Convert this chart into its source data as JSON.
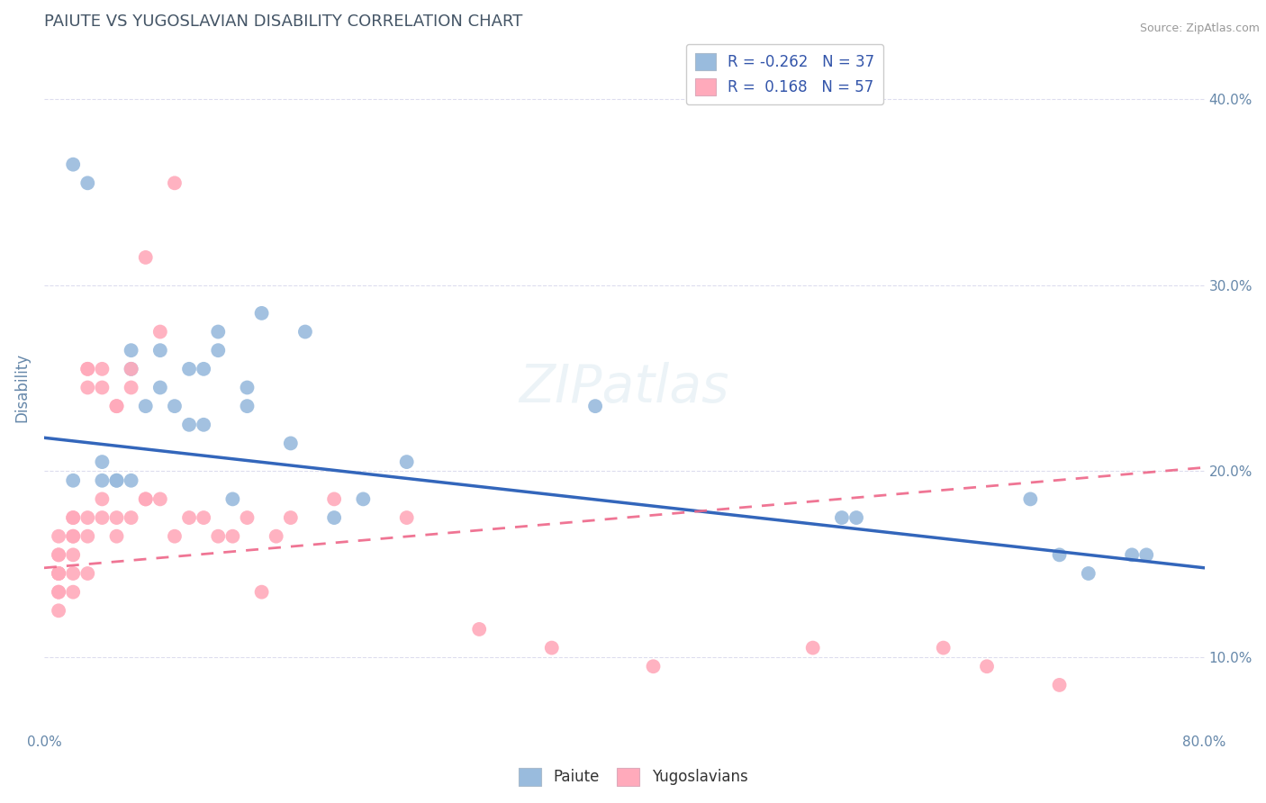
{
  "title": "PAIUTE VS YUGOSLAVIAN DISABILITY CORRELATION CHART",
  "source": "Source: ZipAtlas.com",
  "ylabel": "Disability",
  "xlim": [
    0.0,
    0.8
  ],
  "ylim": [
    0.06,
    0.43
  ],
  "yticks": [
    0.1,
    0.2,
    0.3,
    0.4
  ],
  "ytick_labels": [
    "10.0%",
    "20.0%",
    "30.0%",
    "40.0%"
  ],
  "blue_R": -0.262,
  "blue_N": 37,
  "pink_R": 0.168,
  "pink_N": 57,
  "blue_color": "#99BBDD",
  "pink_color": "#FFAABB",
  "blue_line_color": "#3366BB",
  "pink_line_color": "#EE6688",
  "grid_color": "#DDDDEE",
  "title_color": "#445566",
  "axis_label_color": "#6688AA",
  "watermark": "ZIPatlas",
  "blue_scatter_x": [
    0.02,
    0.03,
    0.04,
    0.05,
    0.06,
    0.06,
    0.07,
    0.08,
    0.08,
    0.09,
    0.1,
    0.1,
    0.11,
    0.11,
    0.12,
    0.12,
    0.13,
    0.14,
    0.14,
    0.15,
    0.17,
    0.18,
    0.2,
    0.22,
    0.25,
    0.38,
    0.55,
    0.56,
    0.68,
    0.7,
    0.72,
    0.75,
    0.76,
    0.04,
    0.05,
    0.06,
    0.02
  ],
  "blue_scatter_y": [
    0.365,
    0.355,
    0.205,
    0.195,
    0.265,
    0.255,
    0.235,
    0.265,
    0.245,
    0.235,
    0.255,
    0.225,
    0.255,
    0.225,
    0.275,
    0.265,
    0.185,
    0.245,
    0.235,
    0.285,
    0.215,
    0.275,
    0.175,
    0.185,
    0.205,
    0.235,
    0.175,
    0.175,
    0.185,
    0.155,
    0.145,
    0.155,
    0.155,
    0.195,
    0.195,
    0.195,
    0.195
  ],
  "pink_scatter_x": [
    0.01,
    0.01,
    0.01,
    0.01,
    0.01,
    0.01,
    0.01,
    0.01,
    0.01,
    0.02,
    0.02,
    0.02,
    0.02,
    0.02,
    0.02,
    0.02,
    0.03,
    0.03,
    0.03,
    0.03,
    0.03,
    0.03,
    0.04,
    0.04,
    0.04,
    0.04,
    0.05,
    0.05,
    0.05,
    0.05,
    0.06,
    0.06,
    0.06,
    0.07,
    0.07,
    0.07,
    0.08,
    0.08,
    0.09,
    0.09,
    0.1,
    0.11,
    0.12,
    0.13,
    0.14,
    0.15,
    0.16,
    0.17,
    0.2,
    0.25,
    0.3,
    0.35,
    0.42,
    0.53,
    0.62,
    0.65,
    0.7
  ],
  "pink_scatter_y": [
    0.145,
    0.145,
    0.155,
    0.155,
    0.165,
    0.135,
    0.135,
    0.125,
    0.145,
    0.165,
    0.175,
    0.165,
    0.175,
    0.155,
    0.145,
    0.135,
    0.255,
    0.255,
    0.245,
    0.165,
    0.175,
    0.145,
    0.255,
    0.245,
    0.185,
    0.175,
    0.235,
    0.235,
    0.175,
    0.165,
    0.255,
    0.245,
    0.175,
    0.185,
    0.185,
    0.315,
    0.275,
    0.185,
    0.355,
    0.165,
    0.175,
    0.175,
    0.165,
    0.165,
    0.175,
    0.135,
    0.165,
    0.175,
    0.185,
    0.175,
    0.115,
    0.105,
    0.095,
    0.105,
    0.105,
    0.095,
    0.085
  ],
  "blue_line_x": [
    0.0,
    0.8
  ],
  "blue_line_y": [
    0.218,
    0.148
  ],
  "pink_line_x": [
    0.0,
    0.8
  ],
  "pink_line_y": [
    0.148,
    0.202
  ]
}
